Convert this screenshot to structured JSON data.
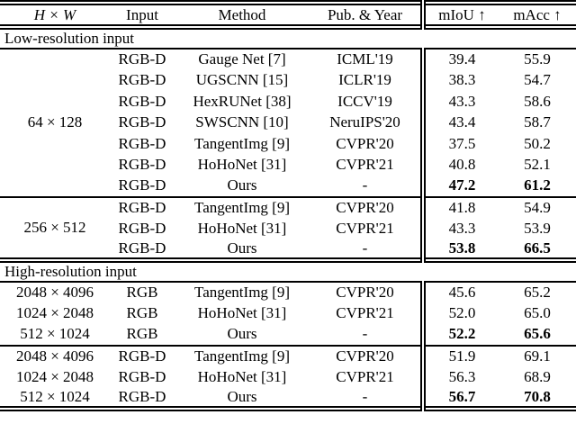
{
  "page": {
    "background_color": "#ffffff",
    "text_color": "#000000"
  },
  "table": {
    "columns": [
      {
        "key": "hw",
        "label": "H × W"
      },
      {
        "key": "input",
        "label": "Input"
      },
      {
        "key": "method",
        "label": "Method"
      },
      {
        "key": "pub",
        "label": "Pub. & Year"
      },
      {
        "key": "miou",
        "label": "mIoU ↑"
      },
      {
        "key": "macc",
        "label": "mAcc ↑"
      }
    ],
    "sections": [
      {
        "title": "Low-resolution input",
        "blocks": [
          {
            "hw": "64 × 128",
            "hw_multirow": true,
            "rows": [
              {
                "input": "RGB-D",
                "method": "Gauge Net [7]",
                "pub": "ICML'19",
                "miou": "39.4",
                "macc": "55.9",
                "highlight": false
              },
              {
                "input": "RGB-D",
                "method": "UGSCNN [15]",
                "pub": "ICLR'19",
                "miou": "38.3",
                "macc": "54.7",
                "highlight": false
              },
              {
                "input": "RGB-D",
                "method": "HexRUNet [38]",
                "pub": "ICCV'19",
                "miou": "43.3",
                "macc": "58.6",
                "highlight": false
              },
              {
                "input": "RGB-D",
                "method": "SWSCNN [10]",
                "pub": "NeruIPS'20",
                "miou": "43.4",
                "macc": "58.7",
                "highlight": false
              },
              {
                "input": "RGB-D",
                "method": "TangentImg [9]",
                "pub": "CVPR'20",
                "miou": "37.5",
                "macc": "50.2",
                "highlight": false
              },
              {
                "input": "RGB-D",
                "method": "HoHoNet [31]",
                "pub": "CVPR'21",
                "miou": "40.8",
                "macc": "52.1",
                "highlight": false
              },
              {
                "input": "RGB-D",
                "method": "Ours",
                "pub": "-",
                "miou": "47.2",
                "macc": "61.2",
                "highlight": true
              }
            ]
          },
          {
            "hw": "256 × 512",
            "hw_multirow": true,
            "rows": [
              {
                "input": "RGB-D",
                "method": "TangentImg [9]",
                "pub": "CVPR'20",
                "miou": "41.8",
                "macc": "54.9",
                "highlight": false
              },
              {
                "input": "RGB-D",
                "method": "HoHoNet [31]",
                "pub": "CVPR'21",
                "miou": "43.3",
                "macc": "53.9",
                "highlight": false
              },
              {
                "input": "RGB-D",
                "method": "Ours",
                "pub": "-",
                "miou": "53.8",
                "macc": "66.5",
                "highlight": true
              }
            ]
          }
        ]
      },
      {
        "title": "High-resolution input",
        "blocks": [
          {
            "hw_multirow": false,
            "rows": [
              {
                "hw": "2048 × 4096",
                "input": "RGB",
                "method": "TangentImg [9]",
                "pub": "CVPR'20",
                "miou": "45.6",
                "macc": "65.2",
                "highlight": false
              },
              {
                "hw": "1024 × 2048",
                "input": "RGB",
                "method": "HoHoNet [31]",
                "pub": "CVPR'21",
                "miou": "52.0",
                "macc": "65.0",
                "highlight": false
              },
              {
                "hw": "512 × 1024",
                "input": "RGB",
                "method": "Ours",
                "pub": "-",
                "miou": "52.2",
                "macc": "65.6",
                "highlight": true
              }
            ]
          },
          {
            "hw_multirow": false,
            "rows": [
              {
                "hw": "2048 × 4096",
                "input": "RGB-D",
                "method": "TangentImg [9]",
                "pub": "CVPR'20",
                "miou": "51.9",
                "macc": "69.1",
                "highlight": false
              },
              {
                "hw": "1024 × 2048",
                "input": "RGB-D",
                "method": "HoHoNet [31]",
                "pub": "CVPR'21",
                "miou": "56.3",
                "macc": "68.9",
                "highlight": false
              },
              {
                "hw": "512 × 1024",
                "input": "RGB-D",
                "method": "Ours",
                "pub": "-",
                "miou": "56.7",
                "macc": "70.8",
                "highlight": true
              }
            ]
          }
        ]
      }
    ]
  }
}
